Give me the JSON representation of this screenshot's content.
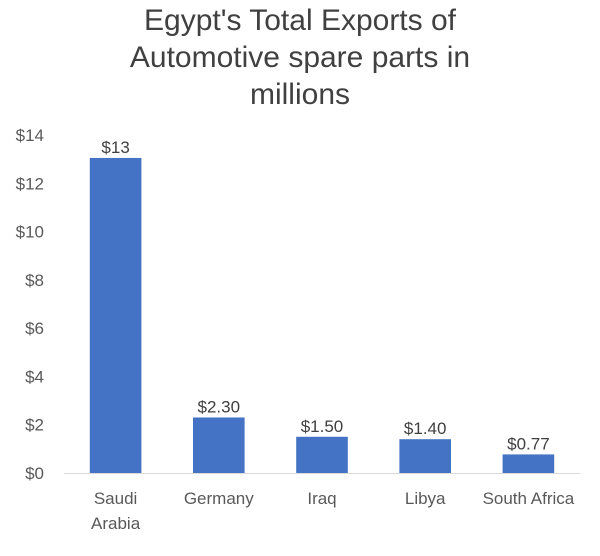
{
  "chart_data": {
    "type": "bar",
    "title_lines": [
      "Egypt's Total Exports of",
      "Automotive spare parts in",
      "millions"
    ],
    "categories": [
      [
        "Saudi",
        "Arabia"
      ],
      [
        "Germany"
      ],
      [
        "Iraq"
      ],
      [
        "Libya"
      ],
      [
        "South Africa"
      ]
    ],
    "values": [
      13.05,
      2.3,
      1.5,
      1.4,
      0.77
    ],
    "data_labels": [
      "$13",
      "$2.30",
      "$1.50",
      "$1.40",
      "$0.77"
    ],
    "yticks": [
      0,
      2,
      4,
      6,
      8,
      10,
      12,
      14
    ],
    "ytick_labels": [
      "$0",
      "$2",
      "$4",
      "$6",
      "$8",
      "$10",
      "$12",
      "$14"
    ],
    "ylim": [
      0,
      14
    ],
    "xlabel": "",
    "ylabel": "",
    "grid": false,
    "legend": "none",
    "colors": {
      "bar": "#4472C4",
      "axis": "#D9D9D9"
    }
  }
}
